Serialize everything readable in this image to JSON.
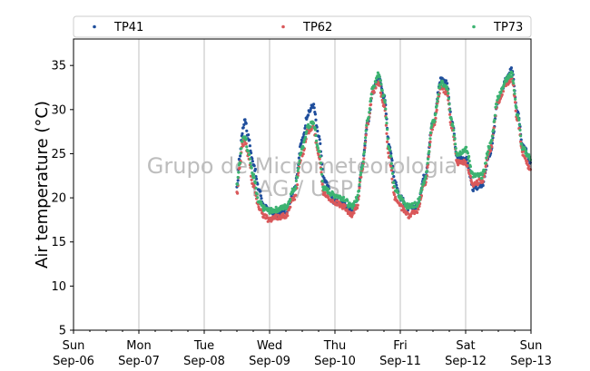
{
  "chart_data": {
    "type": "scatter",
    "ylabel": "Air temperature (°C)",
    "xlabel": "",
    "ylim": [
      5,
      38
    ],
    "xlim": [
      "2020-09-06",
      "2020-09-13"
    ],
    "yticks": [
      5,
      10,
      15,
      20,
      25,
      30,
      35
    ],
    "xticks": [
      {
        "day": "Sun",
        "date": "Sep-06"
      },
      {
        "day": "Mon",
        "date": "Sep-07"
      },
      {
        "day": "Tue",
        "date": "Sep-08"
      },
      {
        "day": "Wed",
        "date": "Sep-09"
      },
      {
        "day": "Thu",
        "date": "Sep-10"
      },
      {
        "day": "Fri",
        "date": "Sep-11"
      },
      {
        "day": "Sat",
        "date": "Sep-12"
      },
      {
        "day": "Sun",
        "date": "Sep-13"
      }
    ],
    "grid": "vertical",
    "legend_position": "top",
    "watermark": [
      "Grupo de Micrometeorologia",
      "IAG / USP"
    ],
    "series": [
      {
        "name": "TP41",
        "color": "#1f4e9c",
        "points": [
          [
            "2020-09-08 12:00",
            21.0
          ],
          [
            "2020-09-08 13:00",
            24.5
          ],
          [
            "2020-09-08 14:00",
            27.5
          ],
          [
            "2020-09-08 15:00",
            29.0
          ],
          [
            "2020-09-08 16:00",
            27.0
          ],
          [
            "2020-09-08 18:00",
            24.0
          ],
          [
            "2020-09-08 20:00",
            21.0
          ],
          [
            "2020-09-08 22:00",
            19.0
          ],
          [
            "2020-09-09 00:00",
            18.5
          ],
          [
            "2020-09-09 03:00",
            18.0
          ],
          [
            "2020-09-09 06:00",
            18.5
          ],
          [
            "2020-09-09 09:00",
            21.0
          ],
          [
            "2020-09-09 12:00",
            26.5
          ],
          [
            "2020-09-09 14:00",
            29.5
          ],
          [
            "2020-09-09 16:00",
            30.5
          ],
          [
            "2020-09-09 18:00",
            27.0
          ],
          [
            "2020-09-09 20:00",
            22.0
          ],
          [
            "2020-09-10 00:00",
            19.5
          ],
          [
            "2020-09-10 03:00",
            19.3
          ],
          [
            "2020-09-10 06:00",
            18.5
          ],
          [
            "2020-09-10 08:00",
            19.5
          ],
          [
            "2020-09-10 10:00",
            23.5
          ],
          [
            "2020-09-10 12:00",
            28.5
          ],
          [
            "2020-09-10 14:00",
            32.0
          ],
          [
            "2020-09-10 16:00",
            33.8
          ],
          [
            "2020-09-10 18:00",
            31.5
          ],
          [
            "2020-09-10 20:00",
            26.0
          ],
          [
            "2020-09-10 22:00",
            22.0
          ],
          [
            "2020-09-11 00:00",
            20.0
          ],
          [
            "2020-09-11 03:00",
            18.8
          ],
          [
            "2020-09-11 06:00",
            19.0
          ],
          [
            "2020-09-11 09:00",
            22.5
          ],
          [
            "2020-09-11 12:00",
            28.5
          ],
          [
            "2020-09-11 15:00",
            33.5
          ],
          [
            "2020-09-11 17:00",
            33.0
          ],
          [
            "2020-09-11 19:00",
            28.5
          ],
          [
            "2020-09-11 21:00",
            24.5
          ],
          [
            "2020-09-12 00:00",
            24.5
          ],
          [
            "2020-09-12 03:00",
            21.0
          ],
          [
            "2020-09-12 06:00",
            21.5
          ],
          [
            "2020-09-12 09:00",
            25.0
          ],
          [
            "2020-09-12 12:00",
            31.0
          ],
          [
            "2020-09-12 15:00",
            33.5
          ],
          [
            "2020-09-12 17:00",
            34.5
          ],
          [
            "2020-09-12 19:00",
            30.0
          ],
          [
            "2020-09-12 21:00",
            26.0
          ],
          [
            "2020-09-13 00:00",
            24.0
          ]
        ]
      },
      {
        "name": "TP62",
        "color": "#d9585a",
        "points": [
          [
            "2020-09-08 12:00",
            20.5
          ],
          [
            "2020-09-08 13:00",
            23.5
          ],
          [
            "2020-09-08 14:00",
            26.0
          ],
          [
            "2020-09-08 15:00",
            26.5
          ],
          [
            "2020-09-08 16:00",
            25.0
          ],
          [
            "2020-09-08 18:00",
            21.5
          ],
          [
            "2020-09-08 20:00",
            19.0
          ],
          [
            "2020-09-08 22:00",
            18.0
          ],
          [
            "2020-09-09 00:00",
            17.5
          ],
          [
            "2020-09-09 03:00",
            17.8
          ],
          [
            "2020-09-09 06:00",
            18.0
          ],
          [
            "2020-09-09 09:00",
            20.0
          ],
          [
            "2020-09-09 12:00",
            25.0
          ],
          [
            "2020-09-09 14:00",
            27.5
          ],
          [
            "2020-09-09 16:00",
            28.0
          ],
          [
            "2020-09-09 18:00",
            25.0
          ],
          [
            "2020-09-09 20:00",
            20.5
          ],
          [
            "2020-09-10 00:00",
            19.5
          ],
          [
            "2020-09-10 03:00",
            19.0
          ],
          [
            "2020-09-10 06:00",
            18.0
          ],
          [
            "2020-09-10 08:00",
            19.0
          ],
          [
            "2020-09-10 10:00",
            23.0
          ],
          [
            "2020-09-10 12:00",
            28.5
          ],
          [
            "2020-09-10 14:00",
            32.0
          ],
          [
            "2020-09-10 16:00",
            33.0
          ],
          [
            "2020-09-10 18:00",
            30.5
          ],
          [
            "2020-09-10 20:00",
            24.5
          ],
          [
            "2020-09-10 22:00",
            20.0
          ],
          [
            "2020-09-11 00:00",
            19.0
          ],
          [
            "2020-09-11 03:00",
            18.0
          ],
          [
            "2020-09-11 06:00",
            18.5
          ],
          [
            "2020-09-11 09:00",
            21.5
          ],
          [
            "2020-09-11 12:00",
            28.0
          ],
          [
            "2020-09-11 15:00",
            32.5
          ],
          [
            "2020-09-11 17:00",
            32.0
          ],
          [
            "2020-09-11 19:00",
            28.0
          ],
          [
            "2020-09-11 21:00",
            24.0
          ],
          [
            "2020-09-12 00:00",
            24.0
          ],
          [
            "2020-09-12 03:00",
            21.5
          ],
          [
            "2020-09-12 06:00",
            22.0
          ],
          [
            "2020-09-12 09:00",
            25.5
          ],
          [
            "2020-09-12 12:00",
            31.0
          ],
          [
            "2020-09-12 15:00",
            33.0
          ],
          [
            "2020-09-12 17:00",
            33.5
          ],
          [
            "2020-09-12 19:00",
            29.0
          ],
          [
            "2020-09-12 21:00",
            25.0
          ],
          [
            "2020-09-13 00:00",
            23.0
          ]
        ]
      },
      {
        "name": "TP73",
        "color": "#3cb371",
        "points": [
          [
            "2020-09-08 12:00",
            21.5
          ],
          [
            "2020-09-08 13:00",
            24.0
          ],
          [
            "2020-09-08 14:00",
            26.5
          ],
          [
            "2020-09-08 15:00",
            27.0
          ],
          [
            "2020-09-08 16:00",
            25.5
          ],
          [
            "2020-09-08 18:00",
            22.5
          ],
          [
            "2020-09-08 20:00",
            19.5
          ],
          [
            "2020-09-08 22:00",
            18.8
          ],
          [
            "2020-09-09 00:00",
            18.5
          ],
          [
            "2020-09-09 03:00",
            18.7
          ],
          [
            "2020-09-09 06:00",
            19.0
          ],
          [
            "2020-09-09 09:00",
            21.0
          ],
          [
            "2020-09-09 12:00",
            25.5
          ],
          [
            "2020-09-09 14:00",
            28.0
          ],
          [
            "2020-09-09 16:00",
            28.5
          ],
          [
            "2020-09-09 18:00",
            25.5
          ],
          [
            "2020-09-09 20:00",
            21.0
          ],
          [
            "2020-09-10 00:00",
            20.3
          ],
          [
            "2020-09-10 03:00",
            20.0
          ],
          [
            "2020-09-10 06:00",
            19.0
          ],
          [
            "2020-09-10 08:00",
            19.8
          ],
          [
            "2020-09-10 10:00",
            23.5
          ],
          [
            "2020-09-10 12:00",
            29.0
          ],
          [
            "2020-09-10 14:00",
            32.5
          ],
          [
            "2020-09-10 16:00",
            34.0
          ],
          [
            "2020-09-10 18:00",
            31.5
          ],
          [
            "2020-09-10 20:00",
            25.5
          ],
          [
            "2020-09-10 22:00",
            21.0
          ],
          [
            "2020-09-11 00:00",
            20.0
          ],
          [
            "2020-09-11 03:00",
            19.0
          ],
          [
            "2020-09-11 06:00",
            19.3
          ],
          [
            "2020-09-11 09:00",
            22.0
          ],
          [
            "2020-09-11 12:00",
            28.5
          ],
          [
            "2020-09-11 15:00",
            33.0
          ],
          [
            "2020-09-11 17:00",
            32.5
          ],
          [
            "2020-09-11 19:00",
            28.5
          ],
          [
            "2020-09-11 21:00",
            25.0
          ],
          [
            "2020-09-12 00:00",
            25.5
          ],
          [
            "2020-09-12 03:00",
            22.5
          ],
          [
            "2020-09-12 06:00",
            22.5
          ],
          [
            "2020-09-12 09:00",
            26.0
          ],
          [
            "2020-09-12 12:00",
            31.5
          ],
          [
            "2020-09-12 15:00",
            33.5
          ],
          [
            "2020-09-12 17:00",
            34.0
          ],
          [
            "2020-09-12 19:00",
            29.5
          ],
          [
            "2020-09-12 21:00",
            25.5
          ],
          [
            "2020-09-13 00:00",
            24.5
          ]
        ]
      }
    ]
  }
}
